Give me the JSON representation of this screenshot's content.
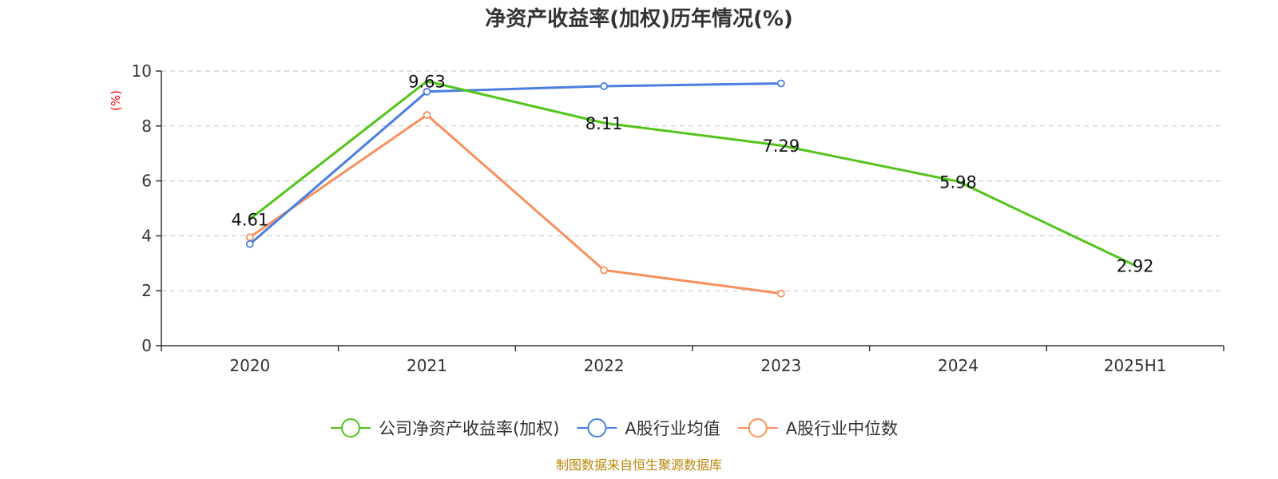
{
  "chart_data": {
    "type": "line",
    "title": "净资产收益率(加权)历年情况(%)",
    "ylabel": "(%)",
    "ylim": [
      0,
      10
    ],
    "yticks": [
      0,
      2,
      4,
      6,
      8,
      10
    ],
    "categories": [
      "2020",
      "2021",
      "2022",
      "2023",
      "2024",
      "2025H1"
    ],
    "grid": true,
    "legend_position": "bottom",
    "series": [
      {
        "name": "公司净资产收益率(加权)",
        "color": "#52c41a",
        "values": [
          4.61,
          9.63,
          8.11,
          7.29,
          5.98,
          2.92
        ],
        "labeled": true
      },
      {
        "name": "A股行业均值",
        "color": "#4a7fe0",
        "values": [
          3.7,
          9.25,
          9.45,
          9.55,
          null,
          null
        ],
        "labeled": false
      },
      {
        "name": "A股行业中位数",
        "color": "#f7905c",
        "values": [
          3.95,
          8.4,
          2.75,
          1.9,
          null,
          null
        ],
        "labeled": false
      }
    ]
  },
  "footer": {
    "source": "制图数据来自恒生聚源数据库",
    "source_color": "#b8860b"
  },
  "colors": {
    "unit_label": "#ff0000",
    "axis": "#333333",
    "grid": "#cccccc"
  }
}
